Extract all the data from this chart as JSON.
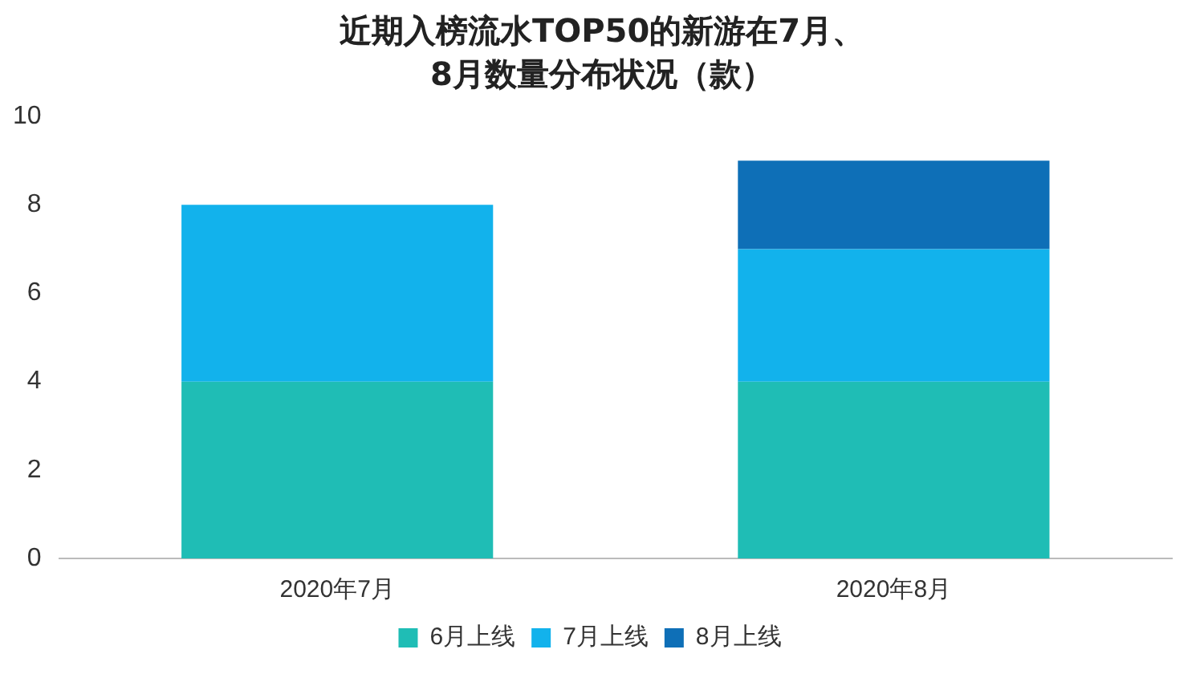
{
  "chart_data": {
    "type": "bar",
    "title": "近期入榜流水TOP50的新游在7月、8月数量分布状况（款）",
    "categories": [
      "2020年7月",
      "2020年8月"
    ],
    "stacked": true,
    "series": [
      {
        "name": "6月上线",
        "color": "#1fbdb5",
        "values": [
          4,
          4
        ]
      },
      {
        "name": "7月上线",
        "color": "#12b2ec",
        "values": [
          4,
          3
        ]
      },
      {
        "name": "8月上线",
        "color": "#0e6fb7",
        "values": [
          null,
          2
        ]
      }
    ],
    "ylim": [
      0,
      10
    ],
    "yticks": [
      0,
      2,
      4,
      6,
      8,
      10
    ],
    "grid": false,
    "legend": "bottom"
  }
}
